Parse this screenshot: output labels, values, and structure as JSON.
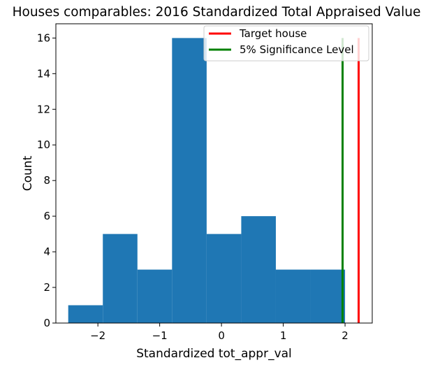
{
  "chart_data": {
    "type": "bar",
    "title": "Houses comparables: 2016 Standardized Total Appraised Value",
    "xlabel": "Standardized tot_appr_val",
    "ylabel": "Count",
    "xlim": [
      -2.68,
      2.44
    ],
    "ylim": [
      0,
      16.8
    ],
    "x_ticks": [
      -2,
      -1,
      0,
      1,
      2
    ],
    "x_tick_labels": [
      "−2",
      "−1",
      "0",
      "1",
      "2"
    ],
    "y_ticks": [
      0,
      2,
      4,
      6,
      8,
      10,
      12,
      14,
      16
    ],
    "y_tick_labels": [
      "0",
      "2",
      "4",
      "6",
      "8",
      "10",
      "12",
      "14",
      "16"
    ],
    "grid": false,
    "legend_position": "top-right",
    "bar_color": "#1f77b4",
    "histogram": {
      "bins": [
        {
          "start": -2.48,
          "end": -1.92,
          "count": 1
        },
        {
          "start": -1.92,
          "end": -1.36,
          "count": 5
        },
        {
          "start": -1.36,
          "end": -0.8,
          "count": 3
        },
        {
          "start": -0.8,
          "end": -0.24,
          "count": 16
        },
        {
          "start": -0.24,
          "end": 0.32,
          "count": 5
        },
        {
          "start": 0.32,
          "end": 0.88,
          "count": 6
        },
        {
          "start": 0.88,
          "end": 1.44,
          "count": 3
        },
        {
          "start": 1.44,
          "end": 2.0,
          "count": 3
        }
      ]
    },
    "vlines": [
      {
        "name": "Target house",
        "x": 2.22,
        "ymin": 0,
        "ymax": 16,
        "color": "#ff0000"
      },
      {
        "name": "5% Significance Level",
        "x": 1.96,
        "ymin": 0,
        "ymax": 16,
        "color": "#008000"
      }
    ]
  }
}
